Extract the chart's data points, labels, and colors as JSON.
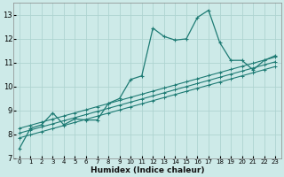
{
  "xlabel": "Humidex (Indice chaleur)",
  "xlim": [
    -0.5,
    23.5
  ],
  "ylim": [
    7,
    13.5
  ],
  "yticks": [
    7,
    8,
    9,
    10,
    11,
    12,
    13
  ],
  "xticks": [
    0,
    1,
    2,
    3,
    4,
    5,
    6,
    7,
    8,
    9,
    10,
    11,
    12,
    13,
    14,
    15,
    16,
    17,
    18,
    19,
    20,
    21,
    22,
    23
  ],
  "background_color": "#cdeae8",
  "grid_color": "#aed4d1",
  "line_color": "#1e7b74",
  "series1_x": [
    0,
    1,
    2,
    3,
    4,
    5,
    6,
    7,
    8,
    9,
    10,
    11,
    12,
    13,
    14,
    15,
    16,
    17,
    18,
    19,
    20,
    21,
    22,
    23
  ],
  "series1_y": [
    7.4,
    8.25,
    8.4,
    8.9,
    8.4,
    8.65,
    8.6,
    8.6,
    9.3,
    9.5,
    10.3,
    10.45,
    12.45,
    12.1,
    11.95,
    12.0,
    12.9,
    13.2,
    11.85,
    11.1,
    11.1,
    10.7,
    11.1,
    11.3
  ],
  "series2_x": [
    0,
    1,
    2,
    3,
    4,
    5,
    6,
    7,
    8,
    9,
    10,
    11,
    12,
    13,
    14,
    15,
    16,
    17,
    18,
    19,
    20,
    21,
    22,
    23
  ],
  "series2_y": [
    8.25,
    8.38,
    8.51,
    8.64,
    8.77,
    8.9,
    9.03,
    9.16,
    9.29,
    9.42,
    9.55,
    9.68,
    9.81,
    9.94,
    10.07,
    10.2,
    10.33,
    10.46,
    10.59,
    10.72,
    10.85,
    10.98,
    11.11,
    11.24
  ],
  "series3_x": [
    0,
    1,
    2,
    3,
    4,
    5,
    6,
    7,
    8,
    9,
    10,
    11,
    12,
    13,
    14,
    15,
    16,
    17,
    18,
    19,
    20,
    21,
    22,
    23
  ],
  "series3_y": [
    8.05,
    8.18,
    8.31,
    8.44,
    8.57,
    8.7,
    8.83,
    8.96,
    9.09,
    9.22,
    9.35,
    9.48,
    9.61,
    9.74,
    9.87,
    10.0,
    10.13,
    10.26,
    10.39,
    10.52,
    10.65,
    10.78,
    10.91,
    11.04
  ],
  "series4_x": [
    0,
    1,
    2,
    3,
    4,
    5,
    6,
    7,
    8,
    9,
    10,
    11,
    12,
    13,
    14,
    15,
    16,
    17,
    18,
    19,
    20,
    21,
    22,
    23
  ],
  "series4_y": [
    7.85,
    7.98,
    8.11,
    8.24,
    8.37,
    8.5,
    8.63,
    8.76,
    8.89,
    9.02,
    9.15,
    9.28,
    9.41,
    9.54,
    9.67,
    9.8,
    9.93,
    10.06,
    10.19,
    10.32,
    10.45,
    10.58,
    10.71,
    10.84
  ]
}
